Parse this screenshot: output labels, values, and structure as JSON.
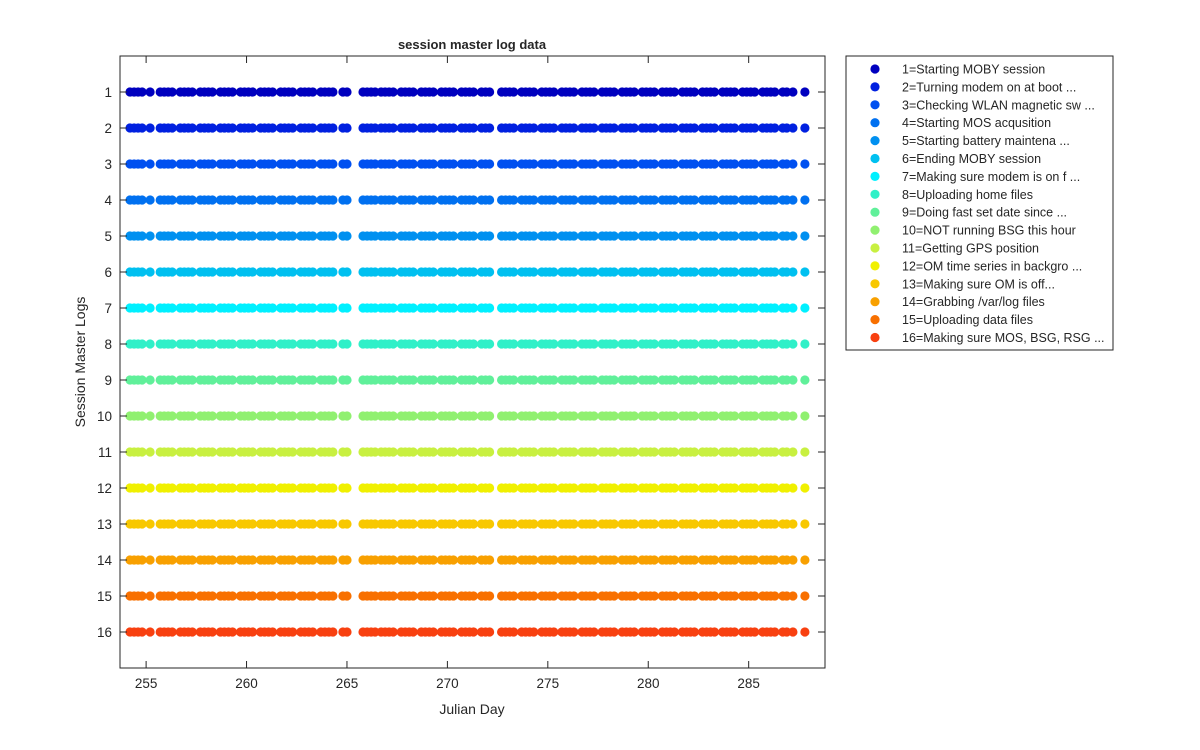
{
  "chart_data": {
    "type": "scatter",
    "title": "session master log data",
    "xlabel": "Julian Day",
    "ylabel": "Session Master Logs",
    "xlim": [
      253.7,
      288.8
    ],
    "ylim": [
      0,
      17
    ],
    "y_reversed": true,
    "x_ticks": [
      255,
      260,
      265,
      270,
      275,
      280,
      285
    ],
    "x_tick_labels": [
      "255",
      "260",
      "265",
      "270",
      "275",
      "280",
      "285"
    ],
    "y_ticks": [
      1,
      2,
      3,
      4,
      5,
      6,
      7,
      8,
      9,
      10,
      11,
      12,
      13,
      14,
      15,
      16
    ],
    "y_tick_labels": [
      "1",
      "2",
      "3",
      "4",
      "5",
      "6",
      "7",
      "8",
      "9",
      "10",
      "11",
      "12",
      "13",
      "14",
      "15",
      "16"
    ],
    "grid": false,
    "legend_position": "outside-top-right",
    "x_values": [
      254.2,
      254.4,
      254.6,
      254.8,
      255.2,
      255.7,
      255.9,
      256.1,
      256.3,
      256.7,
      256.9,
      257.1,
      257.3,
      257.7,
      257.9,
      258.1,
      258.3,
      258.7,
      258.9,
      259.1,
      259.3,
      259.7,
      259.9,
      260.1,
      260.3,
      260.7,
      260.9,
      261.1,
      261.3,
      261.7,
      261.9,
      262.1,
      262.3,
      262.7,
      262.9,
      263.1,
      263.3,
      263.7,
      263.9,
      264.1,
      264.3,
      264.8,
      265.0,
      265.8,
      266.0,
      266.2,
      266.4,
      266.7,
      266.9,
      267.1,
      267.3,
      267.7,
      267.9,
      268.1,
      268.3,
      268.7,
      268.9,
      269.1,
      269.3,
      269.7,
      269.9,
      270.1,
      270.3,
      270.7,
      270.9,
      271.1,
      271.3,
      271.7,
      271.9,
      272.1,
      272.7,
      272.9,
      273.1,
      273.3,
      273.7,
      273.9,
      274.1,
      274.3,
      274.7,
      274.9,
      275.1,
      275.3,
      275.7,
      275.9,
      276.1,
      276.3,
      276.7,
      276.9,
      277.1,
      277.3,
      277.7,
      277.9,
      278.1,
      278.3,
      278.7,
      278.9,
      279.1,
      279.3,
      279.7,
      279.9,
      280.1,
      280.3,
      280.7,
      280.9,
      281.1,
      281.3,
      281.7,
      281.9,
      282.1,
      282.3,
      282.7,
      282.9,
      283.1,
      283.3,
      283.7,
      283.9,
      284.1,
      284.3,
      284.7,
      284.9,
      285.1,
      285.3,
      285.7,
      285.9,
      286.1,
      286.3,
      286.7,
      286.9,
      287.2,
      287.8
    ],
    "series": [
      {
        "name": "1=Starting MOBY session",
        "y": 1,
        "color": "#0000bf"
      },
      {
        "name": "2=Turning modem on at boot  ...",
        "y": 2,
        "color": "#0020e0"
      },
      {
        "name": "3=Checking WLAN magnetic sw ...",
        "y": 3,
        "color": "#0050f0"
      },
      {
        "name": "4=Starting MOS acqusition",
        "y": 4,
        "color": "#0070f0"
      },
      {
        "name": "5=Starting battery maintena ...",
        "y": 5,
        "color": "#0090f0"
      },
      {
        "name": "6=Ending MOBY session",
        "y": 6,
        "color": "#00c0f0"
      },
      {
        "name": "7=Making sure modem is on f ...",
        "y": 7,
        "color": "#00f0ff"
      },
      {
        "name": "8=Uploading home files",
        "y": 8,
        "color": "#30f0c8"
      },
      {
        "name": "9=Doing fast set date since ...",
        "y": 9,
        "color": "#60f09a"
      },
      {
        "name": "10=NOT running BSG this hour",
        "y": 10,
        "color": "#90f070"
      },
      {
        "name": "11=Getting GPS position",
        "y": 11,
        "color": "#c8f040"
      },
      {
        "name": "12=OM time series in backgro ...",
        "y": 12,
        "color": "#f0f000"
      },
      {
        "name": "13=Making sure OM is off...",
        "y": 13,
        "color": "#f8c800"
      },
      {
        "name": "14=Grabbing /var/log files",
        "y": 14,
        "color": "#f8a000"
      },
      {
        "name": "15=Uploading data files",
        "y": 15,
        "color": "#f87000"
      },
      {
        "name": "16=Making sure MOS, BSG, RSG ...",
        "y": 16,
        "color": "#f84010"
      }
    ]
  }
}
